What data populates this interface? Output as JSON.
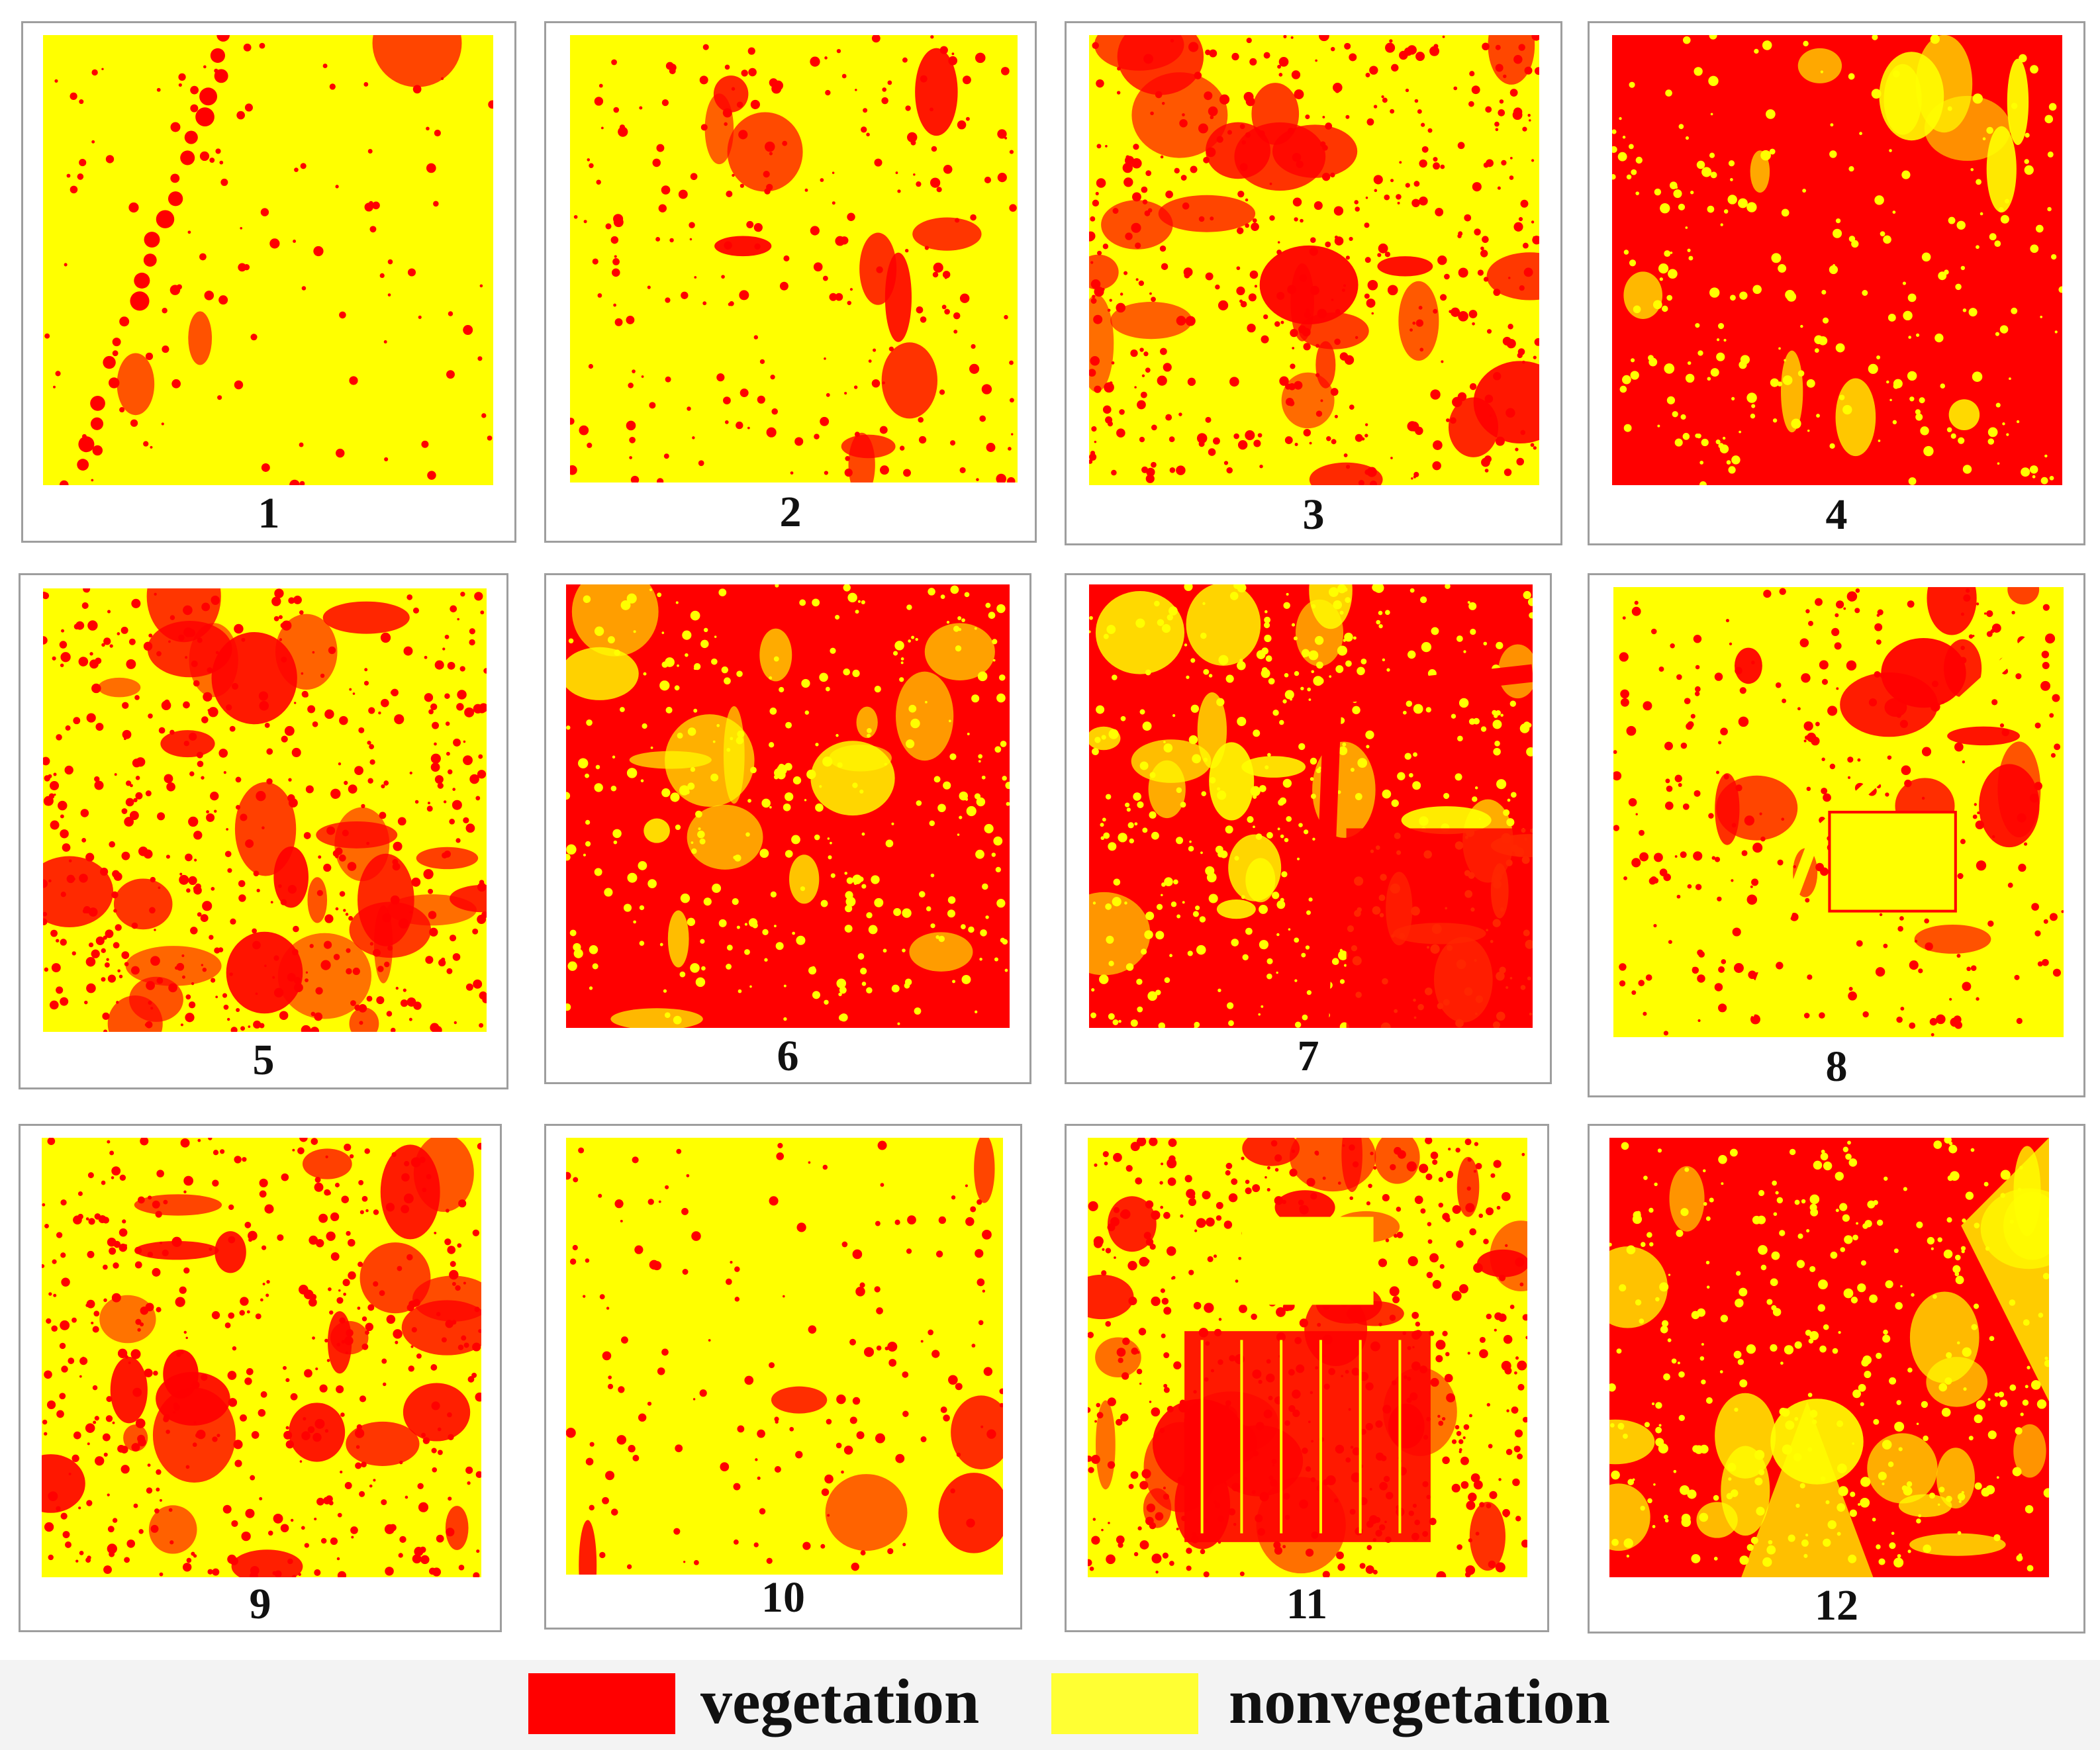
{
  "colors": {
    "vegetation": "#ff0000",
    "nonvegetation": "#ffff00"
  },
  "panels": [
    {
      "label": "1",
      "vegetation_fraction": 0.05,
      "pattern": "sparse-line"
    },
    {
      "label": "2",
      "vegetation_fraction": 0.18,
      "pattern": "scattered-dots"
    },
    {
      "label": "3",
      "vegetation_fraction": 0.4,
      "pattern": "speckled"
    },
    {
      "label": "4",
      "vegetation_fraction": 0.8,
      "pattern": "dense-smooth"
    },
    {
      "label": "5",
      "vegetation_fraction": 0.45,
      "pattern": "speckled"
    },
    {
      "label": "6",
      "vegetation_fraction": 0.72,
      "pattern": "dense-speckled"
    },
    {
      "label": "7",
      "vegetation_fraction": 0.62,
      "pattern": "forest-road"
    },
    {
      "label": "8",
      "vegetation_fraction": 0.25,
      "pattern": "settlement"
    },
    {
      "label": "9",
      "vegetation_fraction": 0.4,
      "pattern": "fine-texture"
    },
    {
      "label": "10",
      "vegetation_fraction": 0.1,
      "pattern": "faint-texture"
    },
    {
      "label": "11",
      "vegetation_fraction": 0.48,
      "pattern": "field-grid"
    },
    {
      "label": "12",
      "vegetation_fraction": 0.7,
      "pattern": "streaked"
    }
  ],
  "legend": [
    {
      "key": "vegetation",
      "label": "vegetation"
    },
    {
      "key": "nonvegetation",
      "label": "nonvegetation"
    }
  ]
}
